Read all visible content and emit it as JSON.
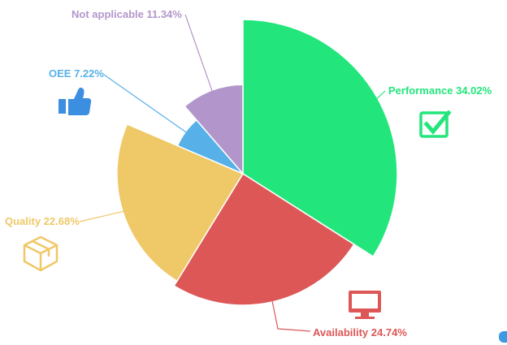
{
  "chart_data": {
    "type": "pie",
    "variant": "variable-radius",
    "slices": [
      {
        "label": "Performance",
        "percent": 34.02,
        "display": "Performance 34.02%",
        "color": "#22e67c",
        "icon": "check-square-icon"
      },
      {
        "label": "Availability",
        "percent": 24.74,
        "display": "Availability 24.74%",
        "color": "#dd5757",
        "icon": "monitor-icon"
      },
      {
        "label": "Quality",
        "percent": 22.68,
        "display": "Quality 22.68%",
        "color": "#efc867",
        "icon": "box-icon"
      },
      {
        "label": "OEE",
        "percent": 7.22,
        "display": "OEE 7.22%",
        "color": "#57b1e8",
        "icon": "thumbs-up-icon"
      },
      {
        "label": "Not applicable",
        "percent": 11.34,
        "display": "Not applicable 11.34%",
        "color": "#b296cb",
        "icon": ""
      }
    ],
    "title": "",
    "legend": "none"
  }
}
